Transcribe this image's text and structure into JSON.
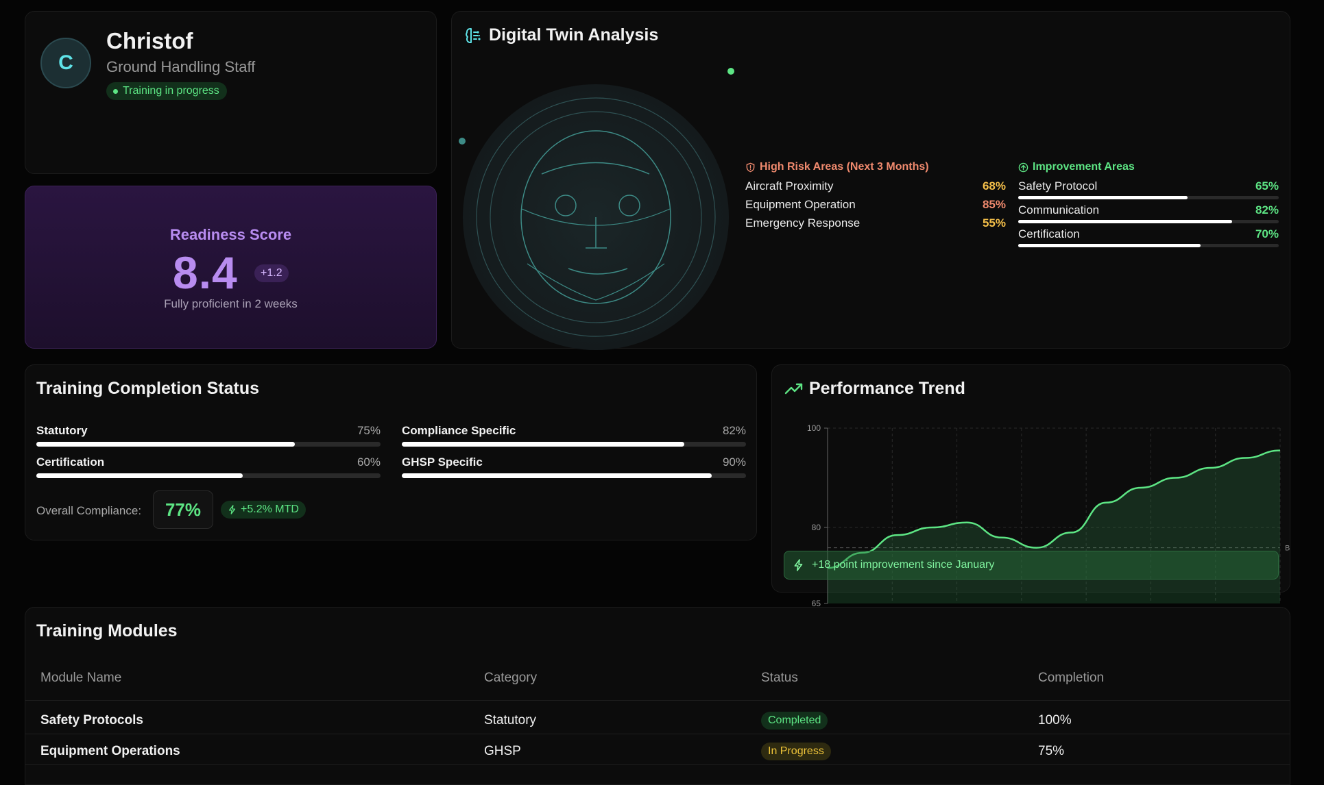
{
  "profile": {
    "initial": "C",
    "name": "Christof",
    "role": "Ground Handling Staff",
    "status": "Training in progress"
  },
  "readiness": {
    "title": "Readiness Score",
    "score": "8.4",
    "delta": "+1.2",
    "subtitle": "Fully proficient in 2 weeks"
  },
  "digital_twin": {
    "title": "Digital Twin Analysis",
    "high_risk": {
      "title": "High Risk Areas (Next 3 Months)",
      "color": "#f08a6e",
      "items": [
        {
          "label": "Aircraft Proximity",
          "value": "68%",
          "color": "#f5c04a"
        },
        {
          "label": "Equipment Operation",
          "value": "85%",
          "color": "#f08a6e"
        },
        {
          "label": "Emergency Response",
          "value": "55%",
          "color": "#f5c04a"
        }
      ]
    },
    "improvement": {
      "title": "Improvement Areas",
      "color": "#5de584",
      "items": [
        {
          "label": "Safety Protocol",
          "value": "65%",
          "level": 0.65
        },
        {
          "label": "Communication",
          "value": "82%",
          "level": 0.82
        },
        {
          "label": "Certification",
          "value": "70%",
          "level": 0.7
        }
      ]
    }
  },
  "completion": {
    "title": "Training Completion Status",
    "bars": [
      {
        "label": "Statutory",
        "value": "75%",
        "level": 0.75
      },
      {
        "label": "Compliance Specific",
        "value": "82%",
        "level": 0.82
      },
      {
        "label": "Certification",
        "value": "60%",
        "level": 0.6
      },
      {
        "label": "GHSP Specific",
        "value": "90%",
        "level": 0.9
      }
    ],
    "overall_label": "Overall Compliance:",
    "overall_value": "77%",
    "overall_change": "+5.2% MTD"
  },
  "trend": {
    "title": "Performance Trend",
    "improvement_note": "+18 point improvement since January",
    "reference_label": "B"
  },
  "chart_data": {
    "type": "area",
    "y_ticks": [
      "100",
      "80",
      "65"
    ],
    "ylim": [
      65,
      100
    ],
    "series": [
      {
        "values": [
          72,
          75,
          78.5,
          80,
          81,
          78,
          76,
          79,
          85,
          88,
          90,
          92,
          94,
          95.5
        ]
      }
    ],
    "reference_line": 76,
    "grid": true,
    "color": "#5de584"
  },
  "modules": {
    "title": "Training Modules",
    "columns": [
      "Module Name",
      "Category",
      "Status",
      "Completion"
    ],
    "rows": [
      {
        "name": "Safety Protocols",
        "category": "Statutory",
        "status": "Completed",
        "status_kind": "done",
        "completion": "100%"
      },
      {
        "name": "Equipment Operations",
        "category": "GHSP",
        "status": "In Progress",
        "status_kind": "prog",
        "completion": "75%"
      }
    ]
  }
}
